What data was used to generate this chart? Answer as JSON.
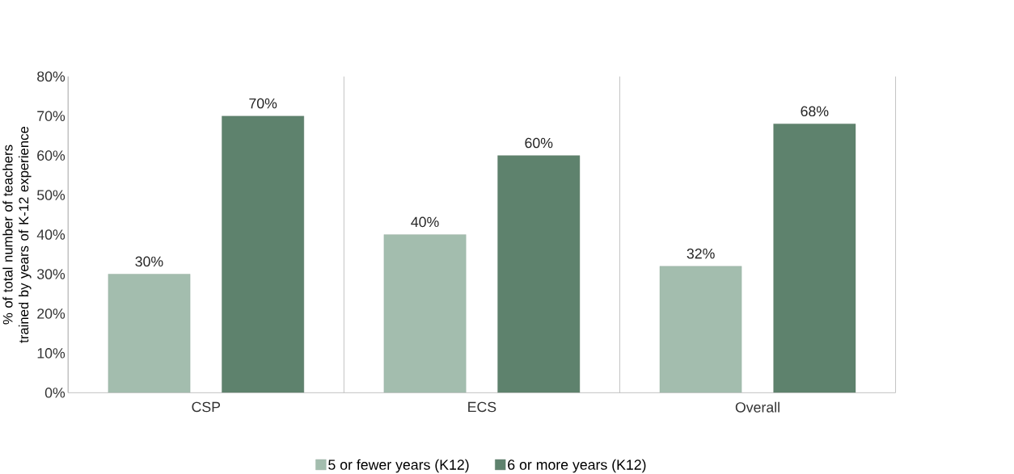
{
  "chart_data": {
    "type": "bar",
    "ylabel": "% of total number of teachers trained by years of K-12 experience",
    "categories": [
      "CSP",
      "ECS",
      "Overall"
    ],
    "series": [
      {
        "name": "5 or fewer years (K12)",
        "color": "#a3bdae",
        "values": [
          30,
          40,
          32
        ],
        "value_labels": [
          "30%",
          "40%",
          "32%"
        ]
      },
      {
        "name": "6 or more years (K12)",
        "color": "#5e826d",
        "values": [
          70,
          60,
          68
        ],
        "value_labels": [
          "70%",
          "60%",
          "68%"
        ]
      }
    ],
    "ylim": [
      0,
      80
    ],
    "yticks": [
      {
        "value": 0,
        "label": "0%"
      },
      {
        "value": 10,
        "label": "10%"
      },
      {
        "value": 20,
        "label": "20%"
      },
      {
        "value": 30,
        "label": "30%"
      },
      {
        "value": 40,
        "label": "40%"
      },
      {
        "value": 50,
        "label": "50%"
      },
      {
        "value": 60,
        "label": "60%"
      },
      {
        "value": 70,
        "label": "70%"
      },
      {
        "value": 80,
        "label": "80%"
      }
    ],
    "grid": "x",
    "legend": "bottom"
  }
}
